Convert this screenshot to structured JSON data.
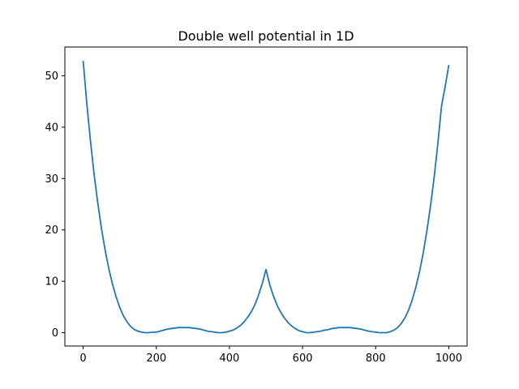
{
  "chart_data": {
    "type": "line",
    "title": "Double well potential in 1D",
    "xlabel": "",
    "ylabel": "",
    "xlim": [
      -50,
      1050
    ],
    "ylim": [
      -2.6,
      55.6
    ],
    "xticks": [
      0,
      200,
      400,
      600,
      800,
      1000
    ],
    "yticks": [
      0,
      10,
      20,
      30,
      40,
      50
    ],
    "grid": false,
    "line_color": "#1f77b4",
    "series": [
      {
        "x": [
          0,
          10,
          20,
          30,
          40,
          50,
          60,
          70,
          80,
          90,
          100,
          110,
          120,
          130,
          140,
          150,
          160,
          170,
          180,
          190,
          200,
          210,
          220,
          230,
          240,
          250,
          260,
          270,
          280,
          290,
          300,
          310,
          320,
          330,
          340,
          350,
          360,
          370,
          380,
          390,
          400,
          410,
          420,
          430,
          440,
          450,
          460,
          470,
          480,
          490,
          500,
          510,
          520,
          530,
          540,
          550,
          560,
          570,
          580,
          590,
          600,
          610,
          620,
          630,
          640,
          650,
          660,
          670,
          680,
          690,
          700,
          710,
          720,
          730,
          740,
          750,
          760,
          770,
          780,
          790,
          800,
          810,
          820,
          830,
          840,
          850,
          860,
          870,
          880,
          890,
          900,
          910,
          920,
          930,
          940,
          950,
          960,
          970,
          980,
          990,
          1000
        ],
        "values": [
          52.9,
          44.6,
          37.3,
          30.8,
          25.2,
          20.3,
          16.1,
          12.5,
          9.5,
          7.0,
          4.9,
          3.3,
          2.1,
          1.2,
          0.6,
          0.3,
          0.1,
          0.0,
          0.0,
          0.1,
          0.1,
          0.3,
          0.5,
          0.7,
          0.8,
          0.9,
          1.0,
          1.0,
          1.0,
          1.0,
          0.9,
          0.8,
          0.7,
          0.5,
          0.3,
          0.2,
          0.1,
          0.0,
          0.0,
          0.1,
          0.3,
          0.5,
          0.9,
          1.4,
          2.1,
          3.0,
          4.1,
          5.5,
          7.4,
          9.6,
          12.3,
          9.4,
          7.2,
          5.4,
          4.0,
          2.9,
          2.0,
          1.3,
          0.8,
          0.4,
          0.2,
          0.0,
          0.0,
          0.1,
          0.2,
          0.3,
          0.5,
          0.6,
          0.8,
          0.9,
          1.0,
          1.0,
          1.0,
          1.0,
          0.9,
          0.8,
          0.7,
          0.5,
          0.3,
          0.2,
          0.1,
          0.0,
          0.0,
          0.0,
          0.2,
          0.5,
          1.0,
          1.8,
          2.9,
          4.4,
          6.4,
          8.9,
          11.9,
          15.5,
          19.8,
          24.7,
          30.3,
          36.8,
          44.1,
          47.9,
          52.1
        ]
      }
    ]
  }
}
